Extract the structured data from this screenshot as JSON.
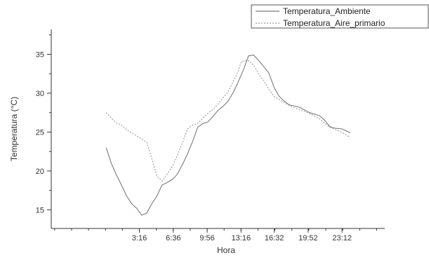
{
  "chart_data": {
    "type": "line",
    "xlabel": "Hora",
    "ylabel": "Temperatura (°C)",
    "x_ticks": [
      {
        "label": "3:16",
        "hours": 3.267
      },
      {
        "label": "6:36",
        "hours": 6.6
      },
      {
        "label": "9:56",
        "hours": 9.933
      },
      {
        "label": "13:16",
        "hours": 13.267
      },
      {
        "label": "16:32",
        "hours": 16.533
      },
      {
        "label": "19:52",
        "hours": 19.867
      },
      {
        "label": "23:12",
        "hours": 23.2
      }
    ],
    "y_ticks": [
      15,
      20,
      25,
      30,
      35
    ],
    "xlim": [
      -5.4,
      27.4
    ],
    "ylim": [
      12.6,
      38.2
    ],
    "legend_position": "top-right",
    "grid": false,
    "series": [
      {
        "name": "Temperatura_Ambiente",
        "color": "#7a7a7a",
        "dash": "solid",
        "points": [
          [
            0.0,
            23.0
          ],
          [
            0.5,
            21.0
          ],
          [
            1.0,
            19.5
          ],
          [
            1.5,
            18.2
          ],
          [
            2.0,
            16.8
          ],
          [
            2.5,
            15.8
          ],
          [
            3.0,
            15.2
          ],
          [
            3.5,
            14.3
          ],
          [
            4.0,
            14.6
          ],
          [
            4.5,
            15.8
          ],
          [
            5.0,
            16.8
          ],
          [
            5.5,
            18.2
          ],
          [
            6.0,
            18.5
          ],
          [
            6.6,
            19.0
          ],
          [
            7.0,
            19.6
          ],
          [
            7.5,
            20.8
          ],
          [
            8.0,
            22.2
          ],
          [
            8.5,
            23.8
          ],
          [
            9.0,
            25.6
          ],
          [
            9.5,
            26.1
          ],
          [
            10.0,
            26.3
          ],
          [
            10.5,
            27.0
          ],
          [
            11.0,
            27.8
          ],
          [
            11.5,
            28.3
          ],
          [
            12.0,
            29.0
          ],
          [
            12.5,
            30.1
          ],
          [
            13.0,
            31.5
          ],
          [
            13.5,
            33.0
          ],
          [
            14.0,
            34.8
          ],
          [
            14.5,
            34.9
          ],
          [
            15.0,
            34.2
          ],
          [
            15.5,
            33.4
          ],
          [
            16.0,
            32.6
          ],
          [
            16.5,
            30.8
          ],
          [
            17.0,
            29.6
          ],
          [
            17.5,
            29.0
          ],
          [
            18.0,
            28.5
          ],
          [
            19.0,
            28.2
          ],
          [
            20.0,
            27.5
          ],
          [
            21.0,
            27.1
          ],
          [
            21.5,
            26.5
          ],
          [
            22.0,
            25.7
          ],
          [
            22.5,
            25.5
          ],
          [
            23.2,
            25.4
          ],
          [
            24.0,
            24.9
          ]
        ]
      },
      {
        "name": "Temperatura_Aire_primario",
        "color": "#999999",
        "dash": "dotted",
        "points": [
          [
            0.0,
            27.5
          ],
          [
            0.5,
            26.8
          ],
          [
            1.0,
            26.2
          ],
          [
            1.5,
            25.9
          ],
          [
            2.0,
            25.3
          ],
          [
            2.5,
            24.9
          ],
          [
            3.0,
            24.5
          ],
          [
            3.5,
            24.1
          ],
          [
            4.0,
            23.7
          ],
          [
            4.5,
            21.5
          ],
          [
            5.0,
            19.3
          ],
          [
            5.5,
            18.7
          ],
          [
            6.0,
            19.6
          ],
          [
            6.6,
            20.8
          ],
          [
            7.0,
            22.0
          ],
          [
            7.5,
            23.6
          ],
          [
            8.0,
            25.4
          ],
          [
            8.5,
            25.9
          ],
          [
            9.0,
            26.1
          ],
          [
            9.5,
            26.8
          ],
          [
            10.0,
            27.4
          ],
          [
            10.5,
            27.9
          ],
          [
            11.0,
            28.6
          ],
          [
            11.5,
            29.4
          ],
          [
            12.0,
            30.2
          ],
          [
            12.5,
            31.5
          ],
          [
            13.0,
            32.9
          ],
          [
            13.3,
            34.1
          ],
          [
            14.0,
            34.2
          ],
          [
            14.5,
            33.6
          ],
          [
            15.0,
            32.5
          ],
          [
            15.5,
            31.6
          ],
          [
            16.0,
            30.5
          ],
          [
            16.5,
            29.6
          ],
          [
            17.0,
            29.2
          ],
          [
            18.0,
            28.4
          ],
          [
            19.0,
            27.9
          ],
          [
            20.0,
            27.4
          ],
          [
            21.0,
            26.7
          ],
          [
            22.0,
            25.6
          ],
          [
            23.0,
            25.1
          ],
          [
            24.0,
            24.3
          ]
        ]
      }
    ]
  }
}
